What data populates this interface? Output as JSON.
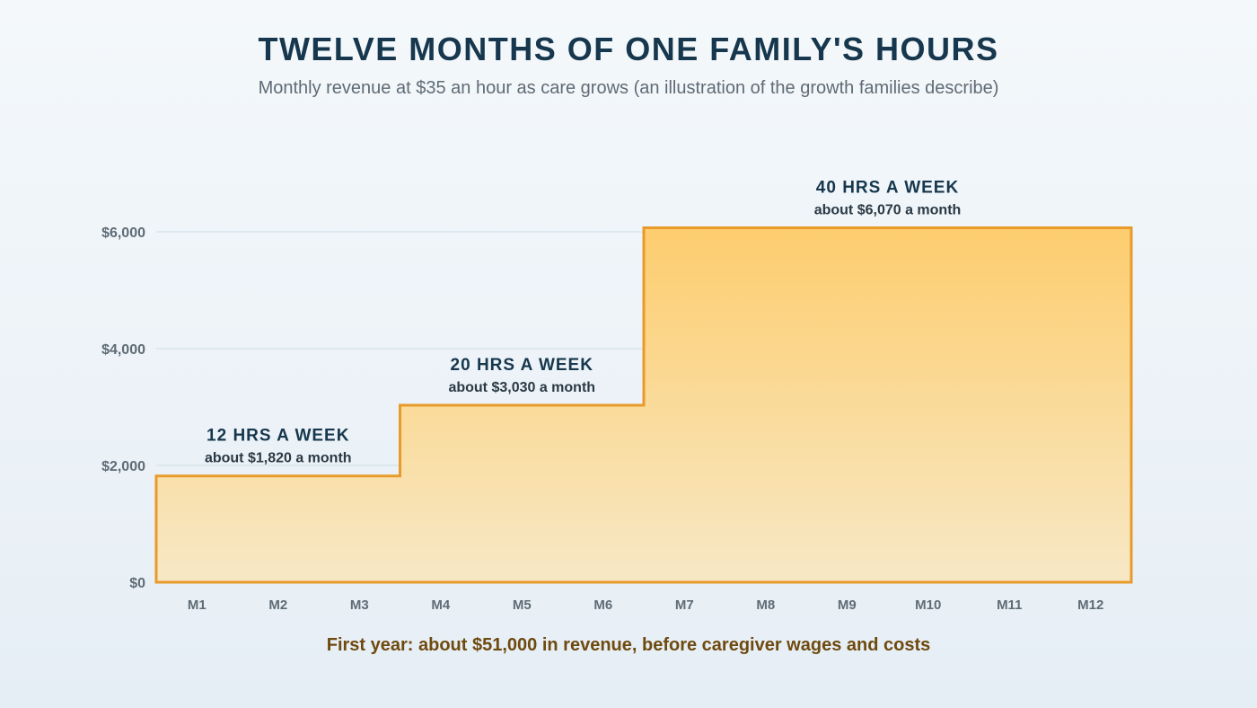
{
  "header": {
    "title": "TWELVE MONTHS OF ONE FAMILY'S HOURS",
    "subtitle": "Monthly revenue at $35 an hour as care grows (an illustration of the growth families describe)"
  },
  "footer": {
    "note": "First year: about $51,000 in revenue, before caregiver wages and costs"
  },
  "colors": {
    "line": "#e89b2a",
    "fill_top": "#fdcd6e",
    "fill_bottom": "#f7e8c6",
    "grid": "#cfdde6"
  },
  "chart_data": {
    "type": "area",
    "x": [
      "M1",
      "M2",
      "M3",
      "M4",
      "M5",
      "M6",
      "M7",
      "M8",
      "M9",
      "M10",
      "M11",
      "M12"
    ],
    "values": [
      1820,
      1820,
      1820,
      3030,
      3030,
      3030,
      6070,
      6070,
      6070,
      6070,
      6070,
      6070
    ],
    "ylim": [
      0,
      6000
    ],
    "yticks": [
      {
        "value": 0,
        "label": "$0"
      },
      {
        "value": 2000,
        "label": "$2,000"
      },
      {
        "value": 4000,
        "label": "$4,000"
      },
      {
        "value": 6000,
        "label": "$6,000"
      }
    ],
    "grid": true,
    "annotations": [
      {
        "hours": "12 HRS A WEEK",
        "amount": "about $1,820 a month",
        "value": 1820,
        "start": 0,
        "end": 2
      },
      {
        "hours": "20 HRS A WEEK",
        "amount": "about $3,030 a month",
        "value": 3030,
        "start": 3,
        "end": 5
      },
      {
        "hours": "40 HRS A WEEK",
        "amount": "about $6,070 a month",
        "value": 6070,
        "start": 6,
        "end": 11
      }
    ]
  }
}
